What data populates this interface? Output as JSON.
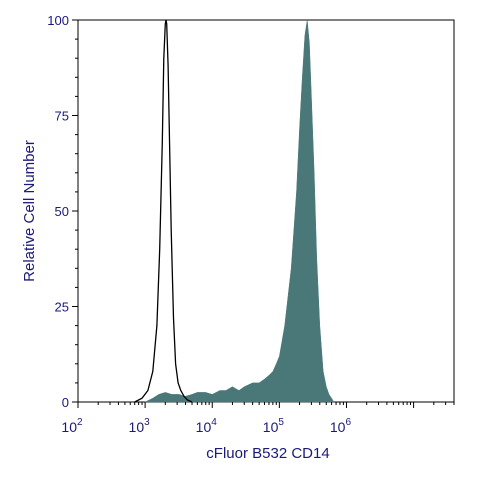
{
  "chart_data": {
    "type": "area",
    "xlabel": "cFluor B532 CD14",
    "ylabel": "Relative Cell Number",
    "x_scale": "log",
    "xlim": [
      100,
      40000000
    ],
    "ylim": [
      0,
      100
    ],
    "x_ticks": [
      {
        "value": 100,
        "base": "10",
        "exp": "2"
      },
      {
        "value": 1000,
        "base": "10",
        "exp": "3"
      },
      {
        "value": 10000,
        "base": "10",
        "exp": "4"
      },
      {
        "value": 100000,
        "base": "10",
        "exp": "5"
      },
      {
        "value": 1000000,
        "base": "10",
        "exp": "6"
      }
    ],
    "y_ticks": [
      {
        "value": 0,
        "label": "0"
      },
      {
        "value": 25,
        "label": "25"
      },
      {
        "value": 50,
        "label": "50"
      },
      {
        "value": 75,
        "label": "75"
      },
      {
        "value": 100,
        "label": "100"
      }
    ],
    "series": [
      {
        "style": "outline",
        "color": "#000000",
        "x": [
          700,
          900,
          1100,
          1300,
          1500,
          1650,
          1800,
          1900,
          2000,
          2050,
          2100,
          2200,
          2300,
          2450,
          2650,
          2850,
          3100,
          3400,
          3800,
          4300,
          5000
        ],
        "y": [
          0,
          1,
          3,
          8,
          20,
          40,
          68,
          90,
          99,
          100,
          99,
          88,
          70,
          45,
          22,
          10,
          5,
          3,
          1.5,
          0.5,
          0
        ]
      },
      {
        "style": "filled",
        "color": "#4a7878",
        "x": [
          1000,
          1300,
          1600,
          2000,
          2500,
          3200,
          4000,
          5000,
          6000,
          8000,
          10000,
          13000,
          16000,
          20000,
          25000,
          30000,
          40000,
          50000,
          60000,
          70000,
          80000,
          90000,
          100000,
          120000,
          150000,
          180000,
          200000,
          220000,
          240000,
          260000,
          280000,
          300000,
          330000,
          360000,
          400000,
          450000,
          500000,
          550000,
          600000,
          650000
        ],
        "y": [
          0,
          1,
          2,
          2.5,
          2,
          2,
          1.5,
          2,
          2.5,
          2.5,
          2,
          3,
          3,
          4,
          3,
          4,
          5,
          5,
          6,
          7,
          8,
          10,
          12,
          20,
          35,
          55,
          72,
          85,
          96,
          100,
          94,
          80,
          60,
          38,
          20,
          8,
          4,
          2,
          1,
          0
        ]
      }
    ]
  }
}
